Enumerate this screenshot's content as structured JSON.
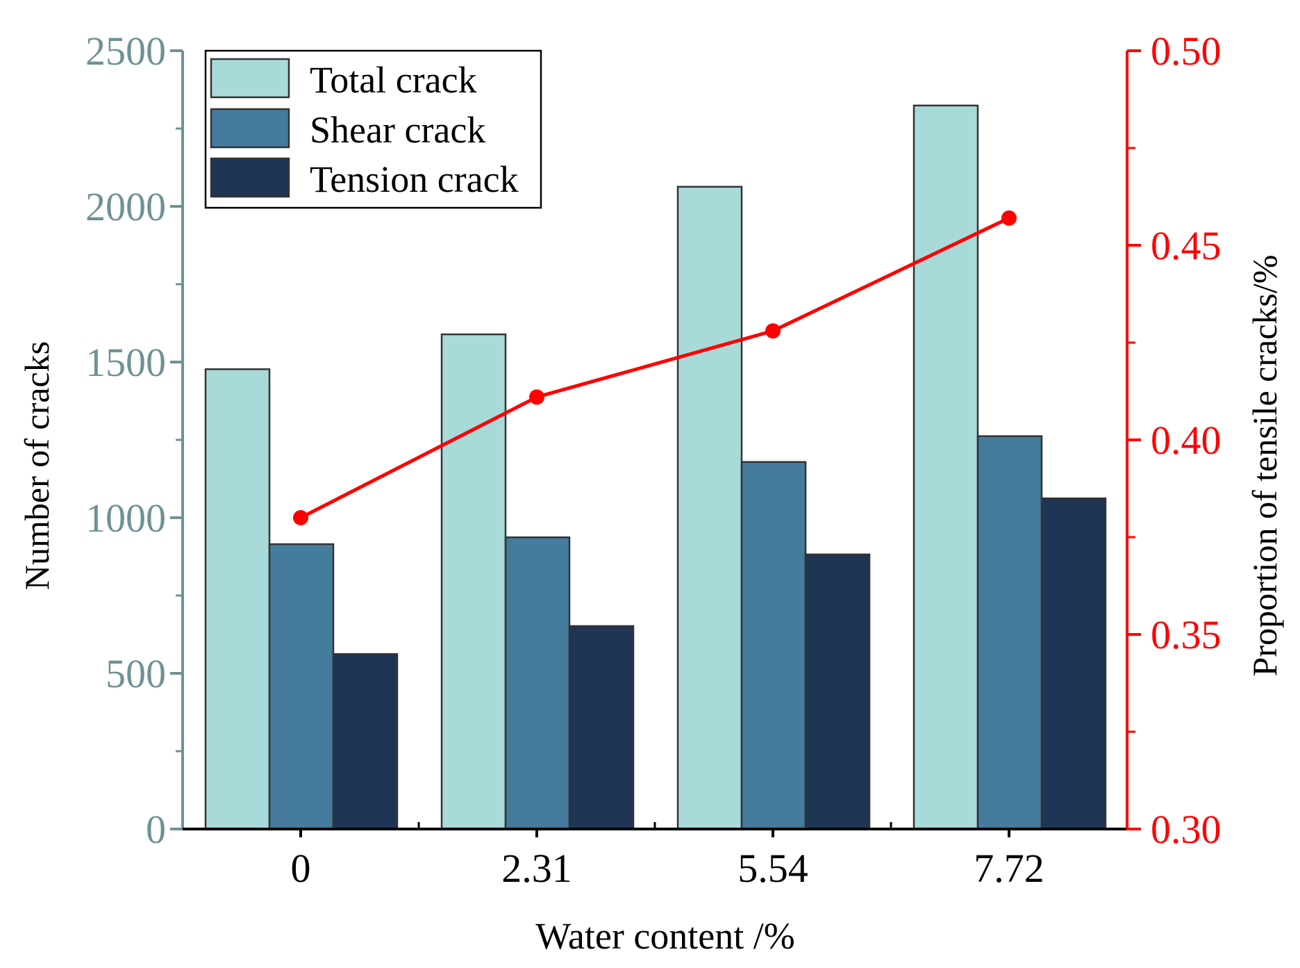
{
  "chart_data": {
    "type": "bar",
    "categories": [
      "0",
      "2.31",
      "5.54",
      "7.72"
    ],
    "series": [
      {
        "name": "Total crack",
        "values": [
          1477,
          1589,
          2063,
          2324
        ],
        "color": "#a8dada"
      },
      {
        "name": "Shear crack",
        "values": [
          915,
          937,
          1179,
          1262
        ],
        "color": "#457b9d"
      },
      {
        "name": "Tension crack",
        "values": [
          562,
          652,
          882,
          1062
        ],
        "color": "#1f3555"
      }
    ],
    "line_series": {
      "name": "Proportion of tensile cracks",
      "values": [
        0.38,
        0.411,
        0.428,
        0.457
      ],
      "color": "#ff0000",
      "axis": "right"
    },
    "xlabel": "Water content /%",
    "ylabel": "Number of cracks",
    "y2label": "Proportion of tensile cracks/%",
    "ylim": [
      0,
      2500
    ],
    "y2lim": [
      0.3,
      0.5
    ],
    "yticks": [
      "0",
      "500",
      "1000",
      "1500",
      "2000",
      "2500"
    ],
    "y2ticks": [
      "0.30",
      "0.35",
      "0.40",
      "0.45",
      "0.50"
    ],
    "legend_position": "top-left",
    "left_axis_color": "#6f9196",
    "right_axis_color": "#ff0000",
    "grid": false
  }
}
